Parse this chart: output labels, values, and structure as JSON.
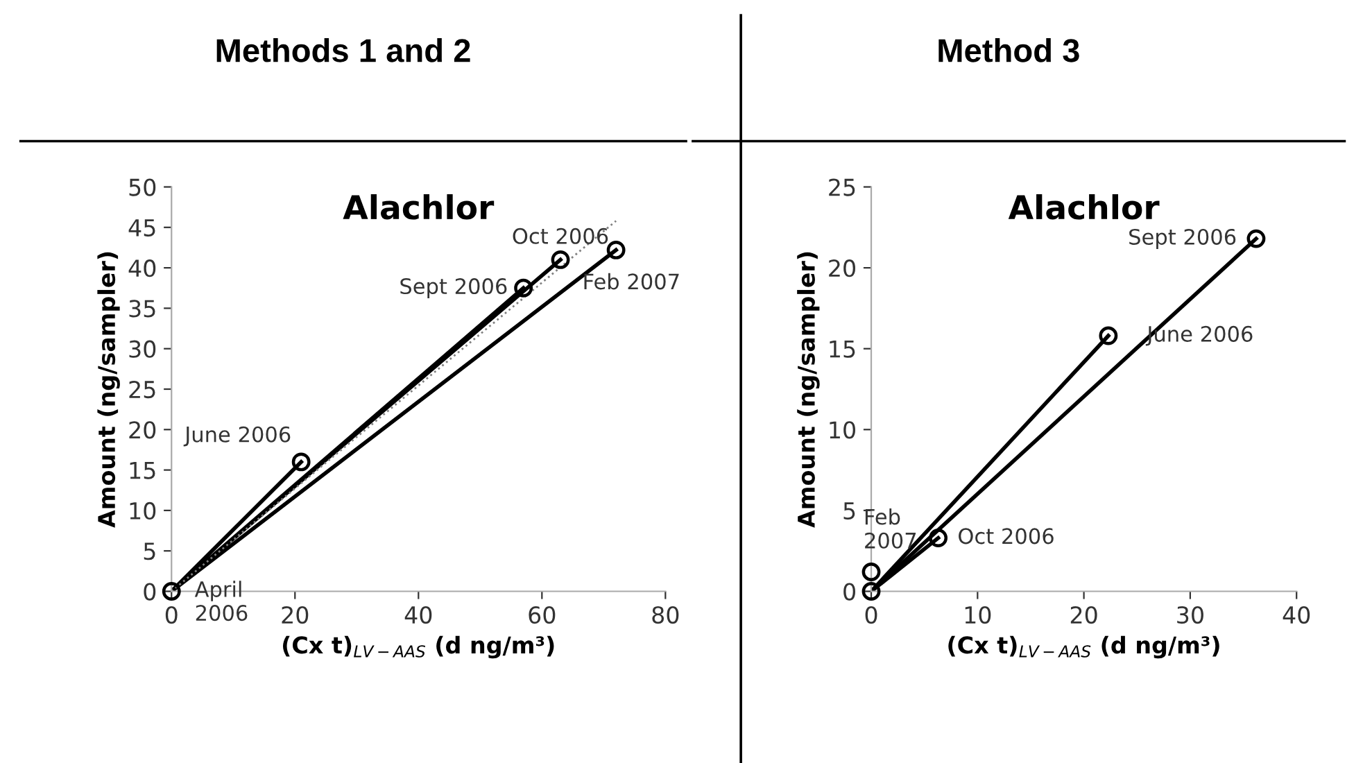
{
  "chart_data": [
    {
      "type": "scatter",
      "title": "Methods 1 and 2",
      "subtitle": "Alachlor",
      "xlabel": "(Cx t)$_{LV−AAS}$ (d ng/m³)",
      "ylabel": "Amount (ng/sampler)",
      "series": [
        {
          "marker": "circle",
          "color": "#000000",
          "x": [
            0,
            21,
            57,
            63,
            72
          ],
          "values": [
            0,
            16,
            37.5,
            41,
            42.2
          ]
        },
        {
          "type": "line",
          "color": "#000000",
          "x": [
            0,
            21
          ],
          "values": [
            0,
            16
          ],
          "line_style": "solid"
        },
        {
          "type": "line",
          "color": "#000000",
          "x": [
            0,
            57
          ],
          "values": [
            0,
            37.5
          ],
          "line_style": "solid"
        },
        {
          "type": "line",
          "color": "#000000",
          "x": [
            0,
            63
          ],
          "values": [
            0,
            41
          ],
          "line_style": "solid"
        },
        {
          "type": "line",
          "color": "#000000",
          "x": [
            0,
            72
          ],
          "values": [
            0,
            42.2
          ],
          "line_style": "solid"
        },
        {
          "type": "line",
          "color": "#808080",
          "x": [
            0,
            72
          ],
          "values": [
            0,
            45.8
          ],
          "line_style": "dotted"
        }
      ],
      "annotations": [
        {
          "text": "April\n2006",
          "x": 0,
          "y": 0
        },
        {
          "text": "June 2006",
          "x": 21,
          "y": 16
        },
        {
          "text": "Sept 2006",
          "x": 57,
          "y": 37.5
        },
        {
          "text": "Oct 2006",
          "x": 63,
          "y": 41
        },
        {
          "text": "Feb 2007",
          "x": 72,
          "y": 42.2
        }
      ],
      "xlim": [
        0,
        80
      ],
      "xticks": [
        0,
        20,
        40,
        60,
        80
      ],
      "ylim": [
        0,
        50
      ],
      "yticks": [
        0,
        5,
        10,
        15,
        20,
        25,
        30,
        35,
        40,
        45,
        50
      ],
      "grid": false,
      "legend": false
    },
    {
      "type": "scatter",
      "title": "Method 3",
      "subtitle": "Alachlor",
      "xlabel": "(Cx t)$_{LV−AAS}$ (d ng/m³)",
      "ylabel": "Amount (ng/sampler)",
      "series": [
        {
          "marker": "circle",
          "color": "#000000",
          "x": [
            0,
            0,
            6.3,
            22.3,
            36.2
          ],
          "values": [
            0,
            1.2,
            3.3,
            15.8,
            21.8
          ]
        },
        {
          "type": "line",
          "color": "#000000",
          "x": [
            0,
            6.3
          ],
          "values": [
            0,
            3.3
          ],
          "line_style": "solid"
        },
        {
          "type": "line",
          "color": "#000000",
          "x": [
            0,
            22.3
          ],
          "values": [
            0,
            15.8
          ],
          "line_style": "solid"
        },
        {
          "type": "line",
          "color": "#000000",
          "x": [
            0,
            36.2
          ],
          "values": [
            0,
            21.8
          ],
          "line_style": "solid"
        }
      ],
      "annotations": [
        {
          "text": "Feb\n2007",
          "x": 0,
          "y": 1.2
        },
        {
          "text": "Oct 2006",
          "x": 6.3,
          "y": 3.3
        },
        {
          "text": "June 2006",
          "x": 22.3,
          "y": 15.8
        },
        {
          "text": "Sept 2006",
          "x": 36.2,
          "y": 21.8
        }
      ],
      "xlim": [
        0,
        40
      ],
      "xticks": [
        0,
        10,
        20,
        30,
        40
      ],
      "ylim": [
        0,
        25
      ],
      "yticks": [
        0,
        5,
        10,
        15,
        20,
        25
      ],
      "grid": false,
      "legend": false
    }
  ]
}
